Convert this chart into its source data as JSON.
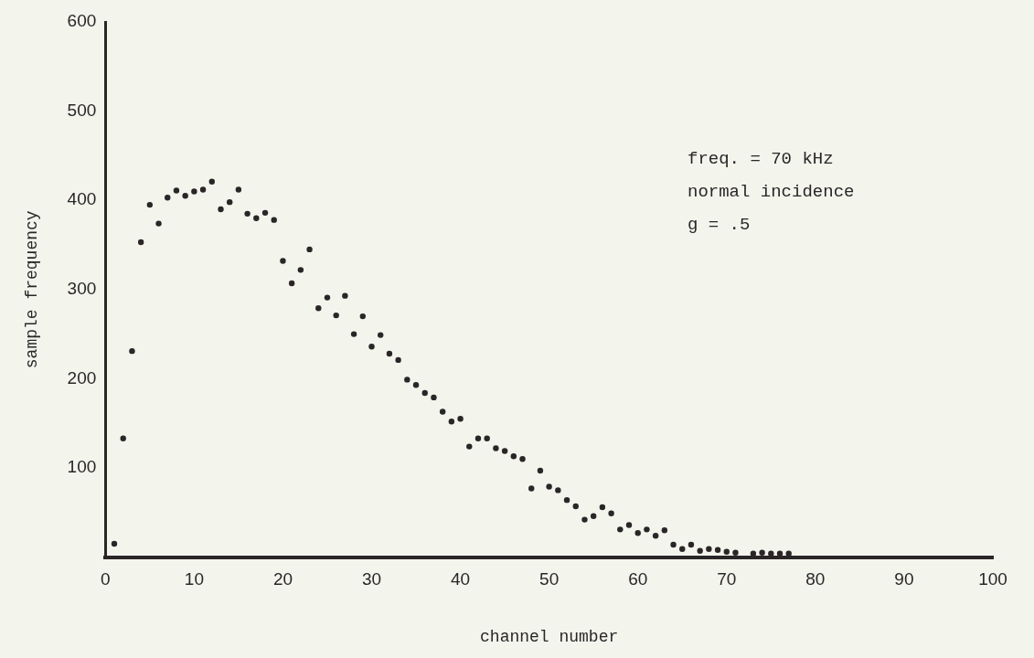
{
  "chart_data": {
    "type": "scatter",
    "xlabel": "channel number",
    "ylabel": "sample frequency",
    "annotations": [
      "freq. = 70 kHz",
      "normal incidence",
      "g = .5"
    ],
    "x": [
      1,
      2,
      3,
      4,
      5,
      6,
      7,
      8,
      9,
      10,
      11,
      12,
      13,
      14,
      15,
      16,
      17,
      18,
      19,
      20,
      21,
      22,
      23,
      24,
      25,
      26,
      27,
      28,
      29,
      30,
      31,
      32,
      33,
      34,
      35,
      36,
      37,
      38,
      39,
      40,
      41,
      42,
      43,
      44,
      45,
      46,
      47,
      48,
      49,
      50,
      51,
      52,
      53,
      54,
      55,
      56,
      57,
      58,
      59,
      60,
      61,
      62,
      63,
      64,
      65,
      66,
      67,
      68,
      69,
      70,
      71,
      73,
      74,
      75,
      76,
      77
    ],
    "series": [
      {
        "color": "#2a2628",
        "values": [
          15,
          133,
          231,
          353,
          395,
          374,
          403,
          411,
          405,
          410,
          412,
          421,
          390,
          398,
          412,
          385,
          380,
          386,
          378,
          332,
          307,
          322,
          345,
          279,
          291,
          271,
          293,
          250,
          270,
          236,
          249,
          228,
          221,
          199,
          193,
          184,
          179,
          163,
          152,
          155,
          124,
          133,
          133,
          122,
          119,
          113,
          110,
          77,
          97,
          79,
          75,
          64,
          57,
          42,
          46,
          56,
          49,
          31,
          36,
          27,
          31,
          24,
          30,
          14,
          9,
          14,
          7,
          9,
          8,
          6,
          5,
          4,
          5,
          4,
          4,
          4
        ]
      }
    ],
    "xlim": [
      0,
      100
    ],
    "xticks": [
      0,
      10,
      20,
      30,
      40,
      50,
      60,
      70,
      80,
      90,
      100
    ],
    "ylim": [
      0,
      600
    ],
    "yticks": [
      100,
      200,
      300,
      400,
      500,
      600
    ],
    "grid": false,
    "legend": false,
    "marker": "circle"
  }
}
